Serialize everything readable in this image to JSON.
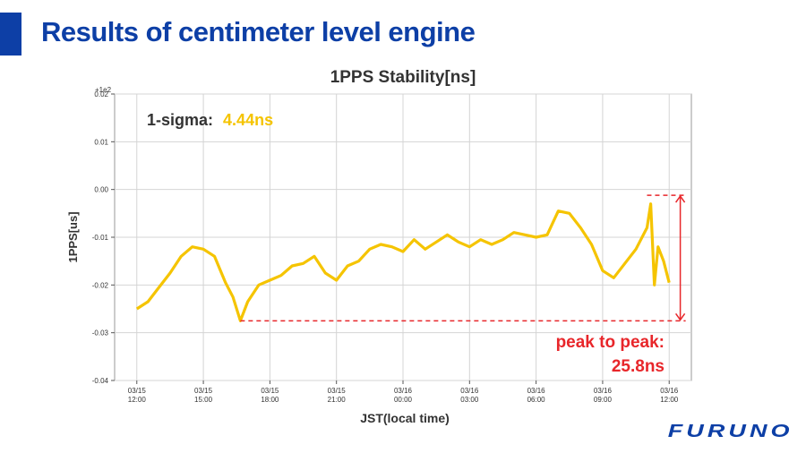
{
  "slide": {
    "title": "Results of centimeter level engine",
    "logo_text": "FURUNO",
    "accent_color": "#0d3fa6"
  },
  "chart_data": {
    "type": "line",
    "title": "1PPS Stability[ns]",
    "xlabel": "JST(local time)",
    "ylabel": "1PPS[us]",
    "offset_label": "+1e2",
    "ylim": [
      -0.04,
      0.02
    ],
    "xlim": [
      "03/15 11:00",
      "03/16 13:00"
    ],
    "grid": true,
    "y_ticks": [
      {
        "value": 0.02,
        "label": "0.02"
      },
      {
        "value": 0.01,
        "label": "0.01"
      },
      {
        "value": 0.0,
        "label": "0.00"
      },
      {
        "value": -0.01,
        "label": "-0.01"
      },
      {
        "value": -0.02,
        "label": "-0.02"
      },
      {
        "value": -0.03,
        "label": "-0.03"
      },
      {
        "value": -0.04,
        "label": "-0.04"
      }
    ],
    "x_ticks": [
      {
        "date": "03/15",
        "time": "12:00"
      },
      {
        "date": "03/15",
        "time": "15:00"
      },
      {
        "date": "03/15",
        "time": "18:00"
      },
      {
        "date": "03/15",
        "time": "21:00"
      },
      {
        "date": "03/16",
        "time": "00:00"
      },
      {
        "date": "03/16",
        "time": "03:00"
      },
      {
        "date": "03/16",
        "time": "06:00"
      },
      {
        "date": "03/16",
        "time": "09:00"
      },
      {
        "date": "03/16",
        "time": "12:00"
      }
    ],
    "series": [
      {
        "color": "#f5c400",
        "points": [
          [
            "03/15 12:00",
            -0.025
          ],
          [
            "03/15 12:30",
            -0.0235
          ],
          [
            "03/15 13:00",
            -0.0205
          ],
          [
            "03/15 13:30",
            -0.0175
          ],
          [
            "03/15 14:00",
            -0.014
          ],
          [
            "03/15 14:30",
            -0.012
          ],
          [
            "03/15 15:00",
            -0.0125
          ],
          [
            "03/15 15:30",
            -0.014
          ],
          [
            "03/15 16:00",
            -0.0195
          ],
          [
            "03/15 16:20",
            -0.0225
          ],
          [
            "03/15 16:40",
            -0.0275
          ],
          [
            "03/15 17:00",
            -0.0235
          ],
          [
            "03/15 17:30",
            -0.02
          ],
          [
            "03/15 18:00",
            -0.019
          ],
          [
            "03/15 18:30",
            -0.018
          ],
          [
            "03/15 19:00",
            -0.016
          ],
          [
            "03/15 19:30",
            -0.0155
          ],
          [
            "03/15 20:00",
            -0.014
          ],
          [
            "03/15 20:30",
            -0.0175
          ],
          [
            "03/15 21:00",
            -0.019
          ],
          [
            "03/15 21:30",
            -0.016
          ],
          [
            "03/15 22:00",
            -0.015
          ],
          [
            "03/15 22:30",
            -0.0125
          ],
          [
            "03/15 23:00",
            -0.0115
          ],
          [
            "03/15 23:30",
            -0.012
          ],
          [
            "03/16 00:00",
            -0.013
          ],
          [
            "03/16 00:30",
            -0.0105
          ],
          [
            "03/16 01:00",
            -0.0125
          ],
          [
            "03/16 01:30",
            -0.011
          ],
          [
            "03/16 02:00",
            -0.0095
          ],
          [
            "03/16 02:30",
            -0.011
          ],
          [
            "03/16 03:00",
            -0.012
          ],
          [
            "03/16 03:30",
            -0.0105
          ],
          [
            "03/16 04:00",
            -0.0115
          ],
          [
            "03/16 04:30",
            -0.0105
          ],
          [
            "03/16 05:00",
            -0.009
          ],
          [
            "03/16 05:30",
            -0.0095
          ],
          [
            "03/16 06:00",
            -0.01
          ],
          [
            "03/16 06:30",
            -0.0095
          ],
          [
            "03/16 07:00",
            -0.0045
          ],
          [
            "03/16 07:30",
            -0.005
          ],
          [
            "03/16 08:00",
            -0.008
          ],
          [
            "03/16 08:30",
            -0.0115
          ],
          [
            "03/16 09:00",
            -0.017
          ],
          [
            "03/16 09:30",
            -0.0185
          ],
          [
            "03/16 10:00",
            -0.0155
          ],
          [
            "03/16 10:30",
            -0.0125
          ],
          [
            "03/16 11:00",
            -0.008
          ],
          [
            "03/16 11:10",
            -0.003
          ],
          [
            "03/16 11:20",
            -0.02
          ],
          [
            "03/16 11:30",
            -0.012
          ],
          [
            "03/16 11:45",
            -0.015
          ],
          [
            "03/16 12:00",
            -0.0195
          ]
        ]
      }
    ],
    "annotations": {
      "sigma_label": "1-sigma:",
      "sigma_value": "4.44ns",
      "p2p_line1": "peak to peak:",
      "p2p_line2": "25.8ns",
      "p2p_max": -0.0012,
      "p2p_min": -0.0275,
      "line_color": "#e8262a",
      "sigma_color": "#f5c400"
    }
  }
}
